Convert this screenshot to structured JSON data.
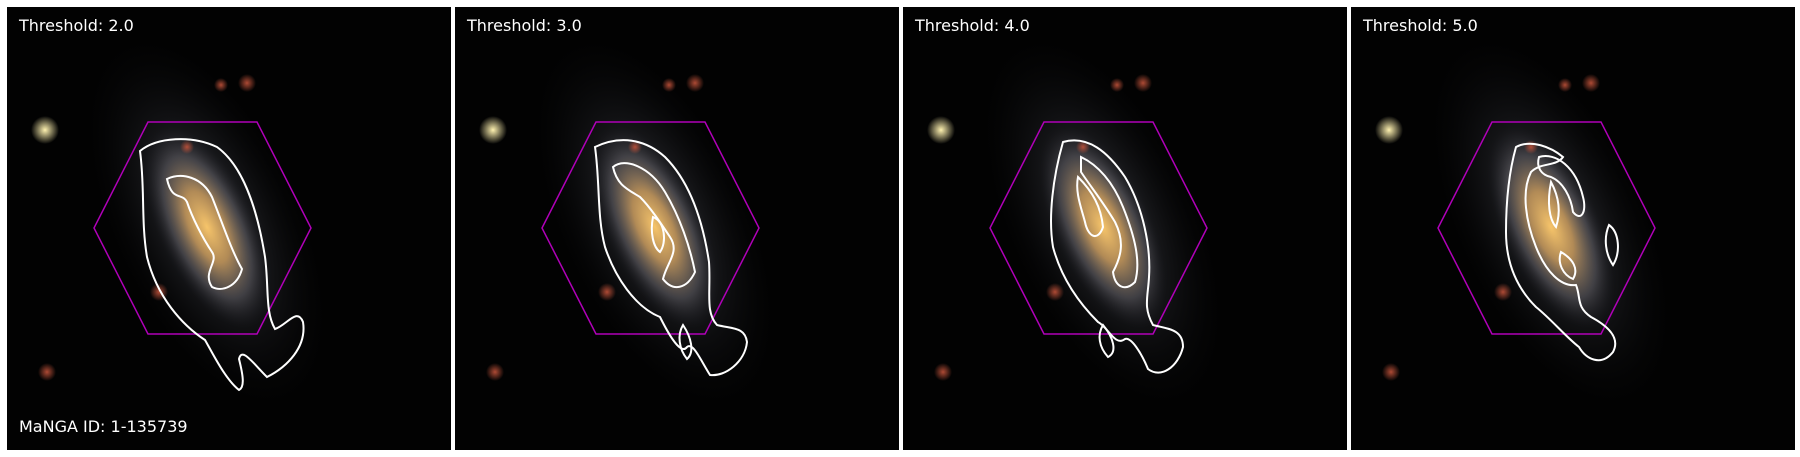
{
  "panels": [
    {
      "label": "Threshold: 2.0"
    },
    {
      "label": "Threshold: 3.0"
    },
    {
      "label": "Threshold: 4.0"
    },
    {
      "label": "Threshold: 5.0"
    }
  ],
  "manga_id_label": "MaNGA ID: 1-135739",
  "colors": {
    "background": "#020202",
    "hexagon": "#b000b8",
    "contour": "#ffffff",
    "galaxy_core": "#f0b45a",
    "galaxy_disk": "#8a8f9a"
  }
}
